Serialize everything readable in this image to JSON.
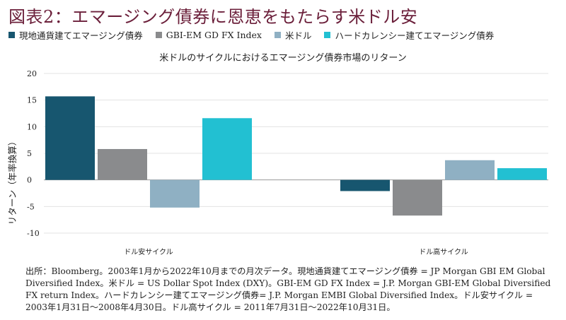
{
  "title": "図表2：エマージング債券に恩恵をもたらす米ドル安",
  "legend": [
    {
      "label": "現地通貨建てエマージング債券",
      "color": "#17566f"
    },
    {
      "label": "GBI-EM GD FX Index",
      "color": "#8a8b8d"
    },
    {
      "label": "米ドル",
      "color": "#8fb0c3"
    },
    {
      "label": "ハードカレンシー建てエマージング債券",
      "color": "#22c0d2"
    }
  ],
  "chart_data": {
    "type": "bar",
    "title": "米ドルのサイクルにおけるエマージング債券市場のリターン",
    "ylabel": "リターン（年率換算）",
    "xlabel": "",
    "ylim": [
      -10,
      20
    ],
    "yticks": [
      20,
      15,
      10,
      5,
      0,
      -5,
      -10
    ],
    "categories": [
      "ドル安サイクル",
      "ドル高サイクル"
    ],
    "series": [
      {
        "name": "現地通貨建てエマージング債券",
        "color": "#17566f",
        "values": [
          15.7,
          -2.1
        ]
      },
      {
        "name": "GBI-EM GD FX Index",
        "color": "#8a8b8d",
        "values": [
          5.8,
          -6.7
        ]
      },
      {
        "name": "米ドル",
        "color": "#8fb0c3",
        "values": [
          -5.2,
          3.7
        ]
      },
      {
        "name": "ハードカレンシー建てエマージング債券",
        "color": "#22c0d2",
        "values": [
          11.6,
          2.2
        ]
      }
    ]
  },
  "footnote": "出所：Bloomberg。2003年1月から2022年10月までの月次データ。現地通貨建てエマージング債券 = JP Morgan GBI EM Global Diversified Index。米ドル = US Dollar Spot Index (DXY)。GBI-EM GD FX Index = J.P. Morgan GBI-EM Global Diversified FX return Index。ハードカレンシー建てエマージング債券= J.P. Morgan EMBI Global Diversified Index。ドル安サイクル = 2003年1月31日～2008年4月30日。ドル高サイクル = 2011年7月31日～2022年10月31日。"
}
